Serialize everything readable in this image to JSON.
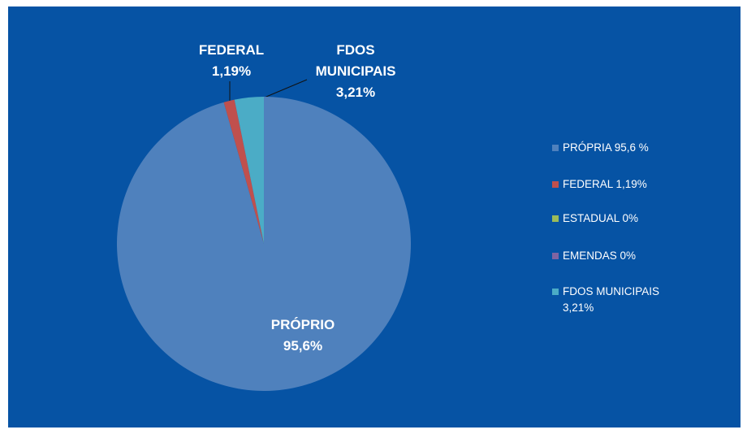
{
  "chart_data": {
    "type": "pie",
    "categories": [
      "PRÓPRIA 95,6 %",
      "FEDERAL 1,19%",
      "ESTADUAL 0%",
      "EMENDAS 0%",
      "FDOS MUNICIPAIS 3,21%"
    ],
    "values": [
      95.6,
      1.19,
      0,
      0,
      3.21
    ],
    "label_names": [
      "PRÓPRIO",
      "FEDERAL",
      null,
      null,
      "FDOS MUNICIPAIS"
    ],
    "value_labels": [
      "95,6%",
      "1,19%",
      null,
      null,
      "3,21%"
    ],
    "colors": [
      "#4f81bd",
      "#c0504d",
      "#9bbb59",
      "#8064a2",
      "#4bacc6"
    ],
    "legend": "right"
  }
}
